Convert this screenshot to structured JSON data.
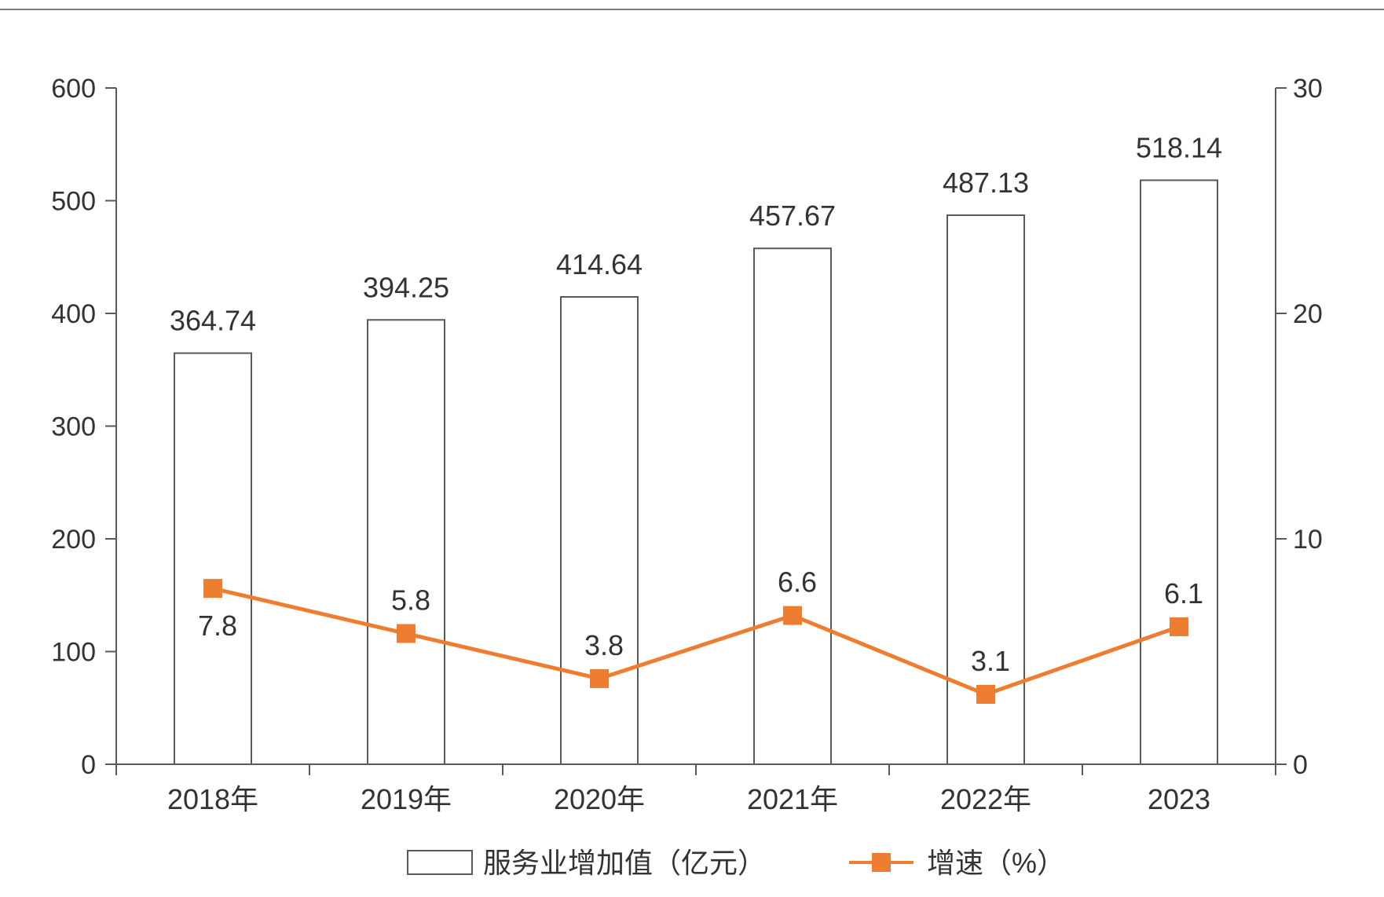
{
  "chart_data": {
    "type": "bar",
    "categories": [
      "2018年",
      "2019年",
      "2020年",
      "2021年",
      "2022年",
      "2023"
    ],
    "series": [
      {
        "name": "服务业增加值（亿元）",
        "type": "bar",
        "axis": "left",
        "values": [
          364.74,
          394.25,
          414.64,
          457.67,
          487.13,
          518.14
        ],
        "labels": [
          "364.74",
          "394.25",
          "414.64",
          "457.67",
          "487.13",
          "518.14"
        ]
      },
      {
        "name": "增速（%）",
        "type": "line",
        "axis": "right",
        "values": [
          7.8,
          5.8,
          3.8,
          6.6,
          3.1,
          6.1
        ],
        "labels": [
          "7.8",
          "5.8",
          "3.8",
          "6.6",
          "3.1",
          "6.1"
        ]
      }
    ],
    "y_left": {
      "ylim": [
        0,
        600
      ],
      "ticks": [
        "0",
        "100",
        "200",
        "300",
        "400",
        "500",
        "600"
      ]
    },
    "y_right": {
      "ylim": [
        0,
        30
      ],
      "ticks": [
        "0",
        "10",
        "20",
        "30"
      ]
    },
    "legend_position": "bottom",
    "grid": false,
    "colors": {
      "bar_fill": "#ffffff",
      "bar_stroke": "#595959",
      "line": "#ED7D31",
      "axis": "#595959"
    }
  }
}
